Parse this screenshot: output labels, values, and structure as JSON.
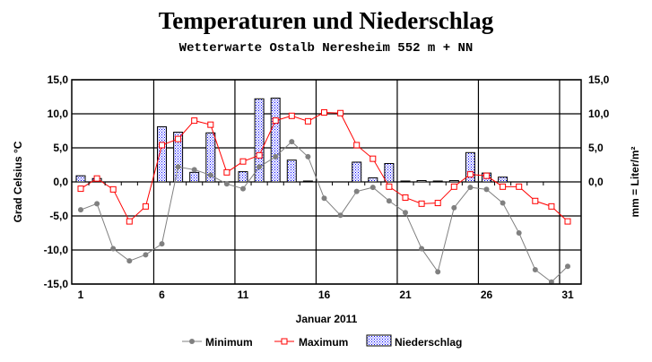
{
  "chart_data": {
    "type": "bar+line",
    "title": "Temperaturen und Niederschlag",
    "subtitle": "Wetterwarte Ostalb Neresheim 552 m + NN",
    "xlabel": "Januar 2011",
    "ylabel": "Grad Celsius °C",
    "ylabel_right": "mm = Liter/m²",
    "x": [
      1,
      2,
      3,
      4,
      5,
      6,
      7,
      8,
      9,
      10,
      11,
      12,
      13,
      14,
      15,
      16,
      17,
      18,
      19,
      20,
      21,
      22,
      23,
      24,
      25,
      26,
      27,
      28,
      29,
      30,
      31
    ],
    "x_ticks": [
      "1",
      "6",
      "11",
      "16",
      "21",
      "26",
      "31"
    ],
    "y_ticks": [
      "15,0",
      "10,0",
      "5,0",
      "0,0",
      "-5,0",
      "-10,0",
      "-15,0"
    ],
    "y_ticks_right": [
      "15,0",
      "10,0",
      "5,0",
      "0,0"
    ],
    "ylim": [
      -15,
      15
    ],
    "grid": true,
    "legend_position": "bottom",
    "series": [
      {
        "name": "Minimum",
        "type": "line",
        "color": "#808080",
        "values": [
          -4.1,
          -3.2,
          -9.8,
          -11.6,
          -10.7,
          -9.1,
          2.2,
          1.8,
          1.0,
          -0.3,
          -1.0,
          2.2,
          3.7,
          5.9,
          3.7,
          -2.4,
          -4.9,
          -1.4,
          -0.8,
          -2.8,
          -4.5,
          -9.8,
          -13.2,
          -3.8,
          -0.8,
          -1.1,
          -3.1,
          -7.5,
          -12.9,
          -14.7,
          -12.4
        ]
      },
      {
        "name": "Maximum",
        "type": "line",
        "color": "#ff0000",
        "values": [
          -1.0,
          0.5,
          -1.1,
          -5.8,
          -3.6,
          5.4,
          6.3,
          9.0,
          8.4,
          1.4,
          3.0,
          3.9,
          9.0,
          9.7,
          8.9,
          10.2,
          10.1,
          5.4,
          3.4,
          -0.7,
          -2.3,
          -3.2,
          -3.1,
          -0.7,
          1.1,
          0.9,
          -0.7,
          -0.7,
          -2.8,
          -3.6,
          -5.8
        ]
      },
      {
        "name": "Niederschlag",
        "type": "bar",
        "color": "#0000ff",
        "values": [
          0.9,
          0.5,
          0,
          0,
          0,
          8.1,
          7.3,
          1.4,
          7.2,
          0,
          1.5,
          12.2,
          12.3,
          3.2,
          0.1,
          0,
          0,
          2.9,
          0.6,
          2.7,
          0.1,
          0.2,
          0.1,
          0.2,
          4.3,
          1.3,
          0.7,
          0,
          0,
          0,
          0
        ]
      }
    ]
  }
}
